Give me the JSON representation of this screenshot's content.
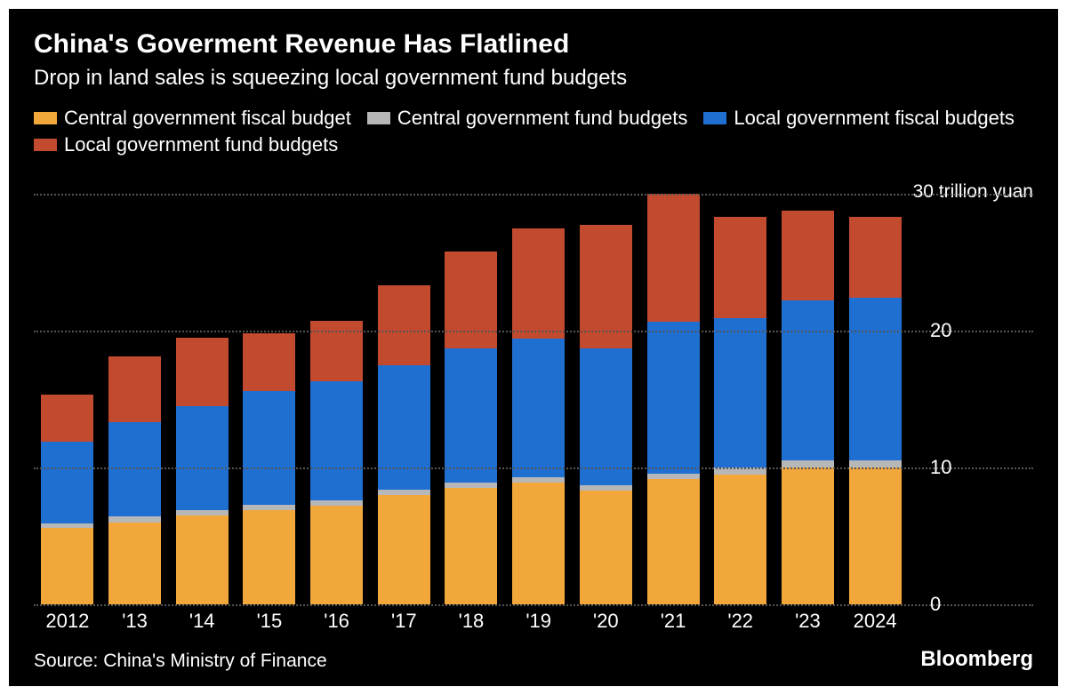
{
  "header": {
    "title": "China's Goverment Revenue Has Flatlined",
    "subtitle": "Drop in land sales is squeezing local government fund budgets"
  },
  "legend": {
    "items": [
      {
        "label": "Central government fiscal budget",
        "color": "#f2a73b"
      },
      {
        "label": "Central government fund budgets",
        "color": "#b7b7b7"
      },
      {
        "label": "Local government fiscal budgets",
        "color": "#1f6fd1"
      },
      {
        "label": "Local government fund budgets",
        "color": "#c24a2e"
      }
    ]
  },
  "chart": {
    "type": "stacked-bar",
    "y": {
      "min": 0,
      "max": 30,
      "ticks": [
        0,
        10,
        20,
        30
      ],
      "unit_label": "30 trillion yuan",
      "tick_labels": [
        "0",
        "10",
        "20",
        ""
      ]
    },
    "categories": [
      "2012",
      "'13",
      "'14",
      "'15",
      "'16",
      "'17",
      "'18",
      "'19",
      "'20",
      "'21",
      "'22",
      "'23",
      "2024"
    ],
    "series": [
      {
        "key": "central_fiscal",
        "color": "#f2a73b"
      },
      {
        "key": "central_fund",
        "color": "#b7b7b7"
      },
      {
        "key": "local_fiscal",
        "color": "#1f6fd1"
      },
      {
        "key": "local_fund",
        "color": "#c24a2e"
      }
    ],
    "data": [
      {
        "central_fiscal": 5.6,
        "central_fund": 0.3,
        "local_fiscal": 6.0,
        "local_fund": 3.4
      },
      {
        "central_fiscal": 6.0,
        "central_fund": 0.4,
        "local_fiscal": 6.9,
        "local_fund": 4.8
      },
      {
        "central_fiscal": 6.5,
        "central_fund": 0.4,
        "local_fiscal": 7.6,
        "local_fund": 5.0
      },
      {
        "central_fiscal": 6.9,
        "central_fund": 0.4,
        "local_fiscal": 8.3,
        "local_fund": 4.2
      },
      {
        "central_fiscal": 7.2,
        "central_fund": 0.4,
        "local_fiscal": 8.7,
        "local_fund": 4.4
      },
      {
        "central_fiscal": 8.0,
        "central_fund": 0.4,
        "local_fiscal": 9.1,
        "local_fund": 5.8
      },
      {
        "central_fiscal": 8.5,
        "central_fund": 0.4,
        "local_fiscal": 9.8,
        "local_fund": 7.1
      },
      {
        "central_fiscal": 8.9,
        "central_fund": 0.4,
        "local_fiscal": 10.1,
        "local_fund": 8.1
      },
      {
        "central_fiscal": 8.3,
        "central_fund": 0.4,
        "local_fiscal": 10.0,
        "local_fund": 9.0
      },
      {
        "central_fiscal": 9.2,
        "central_fund": 0.4,
        "local_fiscal": 11.1,
        "local_fund": 9.4
      },
      {
        "central_fiscal": 9.5,
        "central_fund": 0.5,
        "local_fiscal": 10.9,
        "local_fund": 7.4
      },
      {
        "central_fiscal": 10.0,
        "central_fund": 0.5,
        "local_fiscal": 11.7,
        "local_fund": 6.6
      },
      {
        "central_fiscal": 10.0,
        "central_fund": 0.5,
        "local_fiscal": 11.9,
        "local_fund": 5.9
      }
    ],
    "bar_width": 0.78,
    "background": "#000000",
    "grid_color": "#555555"
  },
  "footer": {
    "source": "Source: China's Ministry of Finance",
    "brand": "Bloomberg"
  }
}
